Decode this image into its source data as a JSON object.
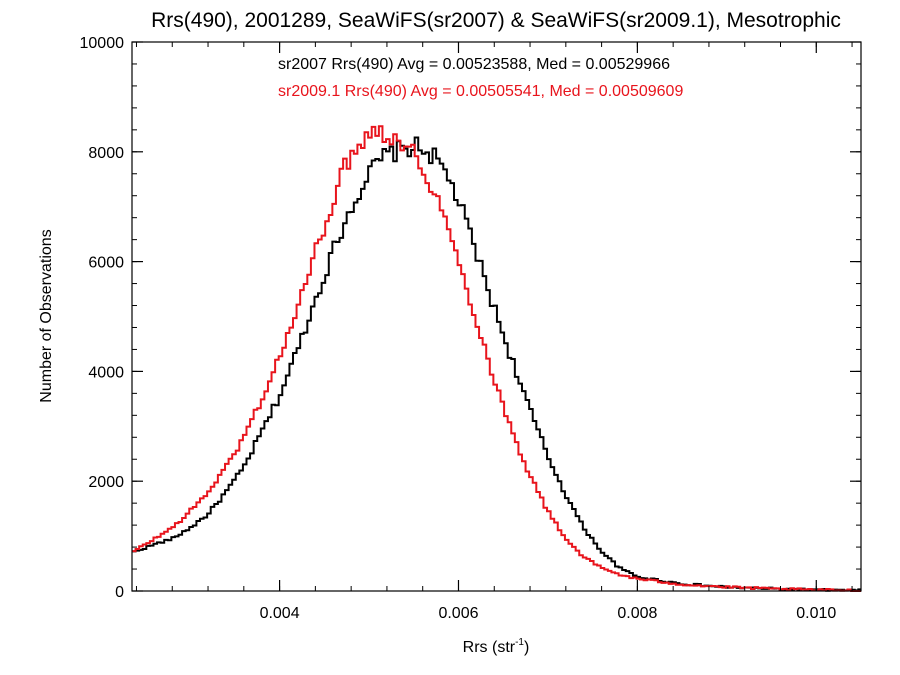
{
  "chart_data": {
    "type": "line",
    "step": true,
    "title": "Rrs(490), 2001289, SeaWiFS(sr2007) & SeaWiFS(sr2009.1), Mesotrophic",
    "xlabel": "Rrs (str",
    "xlabel_sup": "-1",
    "xlabel_end": ")",
    "ylabel": "Number of Observations",
    "xlim": [
      0.00235,
      0.0105
    ],
    "ylim": [
      0,
      10000
    ],
    "x_ticks": [
      0.004,
      0.006,
      0.008,
      0.01
    ],
    "x_tick_labels": [
      "0.004",
      "0.006",
      "0.008",
      "0.010"
    ],
    "y_ticks": [
      0,
      2000,
      4000,
      6000,
      8000,
      10000
    ],
    "y_tick_labels": [
      "0",
      "2000",
      "4000",
      "6000",
      "8000",
      "10000"
    ],
    "x_minor_step": 0.0004,
    "y_minor_step": 400,
    "grid": false,
    "annotations": [
      {
        "text": "sr2007 Rrs(490) Avg = 0.00523588, Med = 0.00529966",
        "color": "#000000"
      },
      {
        "text": "sr2009.1 Rrs(490) Avg = 0.00505541, Med = 0.00509609",
        "color": "#e8141c"
      }
    ],
    "series": [
      {
        "color": "#000000",
        "x": [
          0.00235,
          0.0026,
          0.0028,
          0.003,
          0.0032,
          0.0034,
          0.0036,
          0.0038,
          0.004,
          0.0042,
          0.0044,
          0.0046,
          0.0048,
          0.005,
          0.0051,
          0.0052,
          0.0053,
          0.0054,
          0.0055,
          0.0056,
          0.0057,
          0.0058,
          0.0059,
          0.006,
          0.0061,
          0.0062,
          0.0064,
          0.0066,
          0.0068,
          0.007,
          0.0072,
          0.0074,
          0.0076,
          0.0078,
          0.008,
          0.0085,
          0.009,
          0.0095,
          0.01,
          0.0105
        ],
        "y": [
          700,
          850,
          950,
          1150,
          1400,
          1800,
          2250,
          2900,
          3550,
          4400,
          5300,
          6200,
          7000,
          7600,
          7800,
          7950,
          8000,
          8050,
          8100,
          8050,
          7950,
          7750,
          7500,
          7100,
          6650,
          6150,
          5150,
          4200,
          3300,
          2450,
          1750,
          1150,
          720,
          420,
          260,
          130,
          70,
          40,
          20,
          10
        ]
      },
      {
        "color": "#e8141c",
        "x": [
          0.00235,
          0.0026,
          0.0028,
          0.003,
          0.0032,
          0.0034,
          0.0036,
          0.0038,
          0.004,
          0.0042,
          0.0044,
          0.0046,
          0.0047,
          0.0048,
          0.0049,
          0.005,
          0.0051,
          0.0052,
          0.0053,
          0.0054,
          0.0055,
          0.0056,
          0.0057,
          0.0058,
          0.0059,
          0.006,
          0.0062,
          0.0064,
          0.0066,
          0.0068,
          0.007,
          0.0072,
          0.0074,
          0.0076,
          0.0078,
          0.008,
          0.0085,
          0.009,
          0.0095,
          0.01,
          0.0105
        ],
        "y": [
          700,
          950,
          1150,
          1450,
          1800,
          2250,
          2800,
          3500,
          4250,
          5150,
          6150,
          7150,
          7600,
          7950,
          8200,
          8350,
          8400,
          8350,
          8250,
          8150,
          7950,
          7700,
          7400,
          7000,
          6500,
          6000,
          4950,
          3850,
          2900,
          2100,
          1450,
          950,
          620,
          420,
          300,
          220,
          120,
          70,
          40,
          20,
          10
        ]
      }
    ]
  }
}
